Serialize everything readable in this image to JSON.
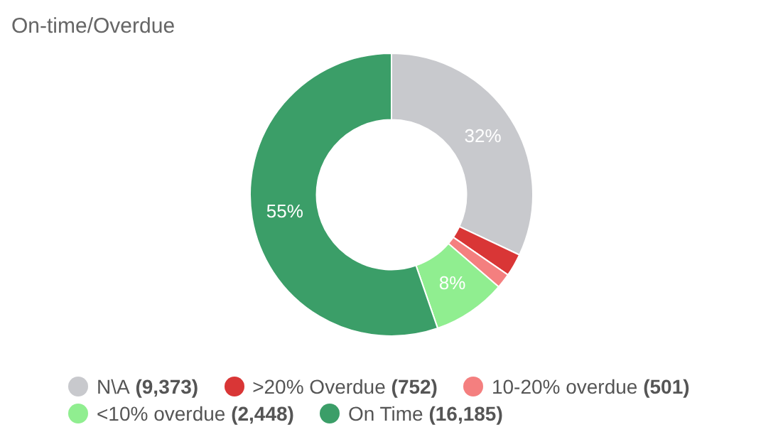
{
  "chart_data": {
    "type": "donut",
    "title": "On-time/Overdue",
    "categories": [
      "N\\A (9,373)",
      ">20% Overdue (752)",
      "10-20% overdue (501)",
      "<10% overdue (2,448)",
      "On Time (16,185)"
    ],
    "values": [
      32.0,
      2.6,
      1.7,
      8.4,
      55.3
    ],
    "colors": [
      "#c8c9cd",
      "#d93636",
      "#f47f7f",
      "#90ee90",
      "#3b9e68"
    ],
    "value_labels": [
      "32%",
      null,
      null,
      "8%",
      "55%"
    ],
    "legend": "bottom"
  }
}
